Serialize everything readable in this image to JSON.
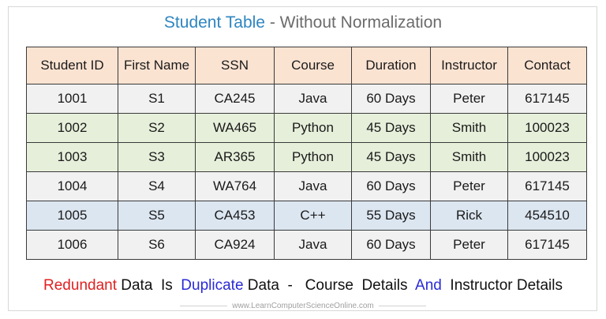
{
  "title": {
    "main": "Student Table",
    "sub": " - Without Normalization"
  },
  "table": {
    "headers": [
      "Student ID",
      "First Name",
      "SSN",
      "Course",
      "Duration",
      "Instructor",
      "Contact"
    ],
    "rows": [
      [
        "1001",
        "S1",
        "CA245",
        "Java",
        "60 Days",
        "Peter",
        "617145"
      ],
      [
        "1002",
        "S2",
        "WA465",
        "Python",
        "45 Days",
        "Smith",
        "100023"
      ],
      [
        "1003",
        "S3",
        "AR365",
        "Python",
        "45 Days",
        "Smith",
        "100023"
      ],
      [
        "1004",
        "S4",
        "WA764",
        "Java",
        "60 Days",
        "Peter",
        "617145"
      ],
      [
        "1005",
        "S5",
        "CA453",
        "C++",
        "55 Days",
        "Rick",
        "454510"
      ],
      [
        "1006",
        "S6",
        "CA924",
        "Java",
        "60 Days",
        "Peter",
        "617145"
      ]
    ]
  },
  "note": {
    "part1": "Redundant",
    "part2": " Data  Is  ",
    "part3": "Duplicate",
    "part4": " Data  -   Course  Details  ",
    "part5": "And",
    "part6": "  Instructor Details"
  },
  "footer": "www.LearnComputerScienceOnline.com",
  "colors": {
    "header_bg": "#fbe3d2",
    "row_gray": "#f1f1f1",
    "row_green": "#e6efda",
    "row_blue": "#dce6f1",
    "title_blue": "#2e86c1",
    "note_red": "#e02020",
    "note_blue": "#2a2ad6"
  }
}
